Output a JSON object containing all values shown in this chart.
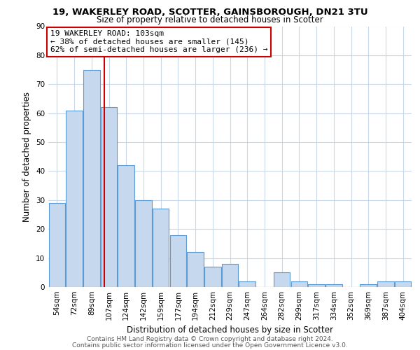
{
  "title1": "19, WAKERLEY ROAD, SCOTTER, GAINSBOROUGH, DN21 3TU",
  "title2": "Size of property relative to detached houses in Scotter",
  "xlabel": "Distribution of detached houses by size in Scotter",
  "ylabel": "Number of detached properties",
  "categories": [
    "54sqm",
    "72sqm",
    "89sqm",
    "107sqm",
    "124sqm",
    "142sqm",
    "159sqm",
    "177sqm",
    "194sqm",
    "212sqm",
    "229sqm",
    "247sqm",
    "264sqm",
    "282sqm",
    "299sqm",
    "317sqm",
    "334sqm",
    "352sqm",
    "369sqm",
    "387sqm",
    "404sqm"
  ],
  "values": [
    29,
    61,
    75,
    62,
    42,
    30,
    27,
    18,
    12,
    7,
    8,
    2,
    0,
    5,
    2,
    1,
    1,
    0,
    1,
    2,
    2
  ],
  "bar_color": "#c5d8ed",
  "bar_edge_color": "#5b9bd5",
  "property_label": "19 WAKERLEY ROAD: 103sqm",
  "annotation_line1": "← 38% of detached houses are smaller (145)",
  "annotation_line2": "62% of semi-detached houses are larger (236) →",
  "vline_color": "#cc0000",
  "vline_x_index": 2.75,
  "ylim": [
    0,
    90
  ],
  "yticks": [
    0,
    10,
    20,
    30,
    40,
    50,
    60,
    70,
    80,
    90
  ],
  "grid_color": "#c8d8e8",
  "background_color": "#ffffff",
  "footer_line1": "Contains HM Land Registry data © Crown copyright and database right 2024.",
  "footer_line2": "Contains public sector information licensed under the Open Government Licence v3.0.",
  "annotation_box_color": "#ffffff",
  "annotation_box_edge": "#cc0000",
  "title1_fontsize": 9.5,
  "title2_fontsize": 8.5,
  "xlabel_fontsize": 8.5,
  "ylabel_fontsize": 8.5,
  "tick_fontsize": 7.5,
  "footer_fontsize": 6.5,
  "annot_fontsize": 8.0
}
